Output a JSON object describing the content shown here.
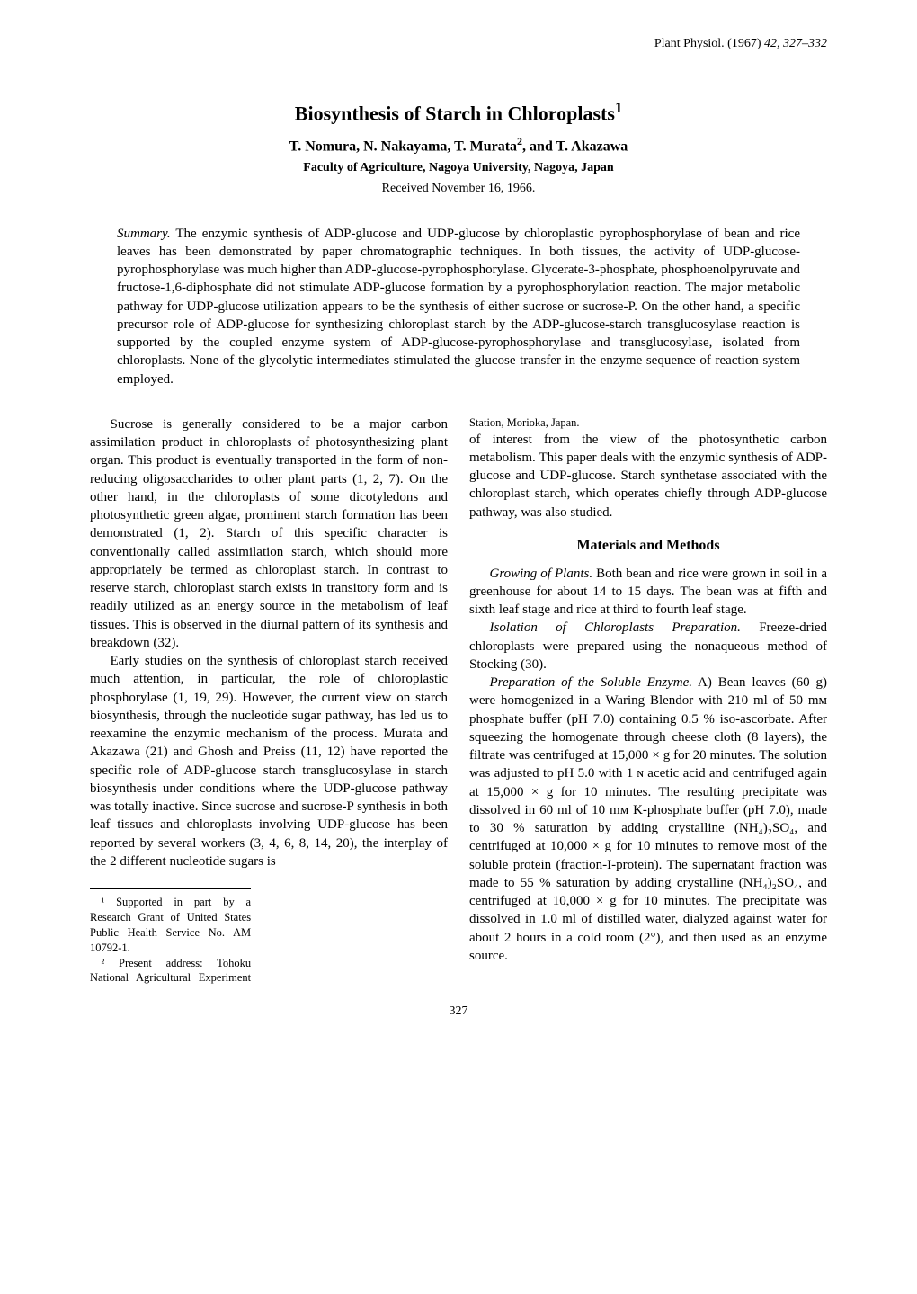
{
  "journal": {
    "name": "Plant Physiol.",
    "year": "(1967)",
    "volume_pages": "42, 327–332"
  },
  "title_text": "Biosynthesis of Starch in Chloroplasts",
  "title_sup": "1",
  "authors_text": "T. Nomura, N. Nakayama, T. Murata",
  "authors_sup": "2",
  "authors_and": ", and T. Akazawa",
  "affiliation": "Faculty of Agriculture, Nagoya University, Nagoya, Japan",
  "received": "Received November 16, 1966.",
  "summary_label": "Summary.",
  "summary_body": "  The enzymic synthesis of ADP-glucose and UDP-glucose by chloroplastic pyrophosphorylase of bean and rice leaves has been demonstrated by paper chromatographic techniques. In both tissues, the activity of UDP-glucose-pyrophosphorylase was much higher than ADP-glucose-pyrophosphorylase. Glycerate-3-phosphate, phosphoenolpyruvate and fructose-1,6-diphosphate did not stimulate ADP-glucose formation by a pyrophosphorylation reaction. The major metabolic pathway for UDP-glucose utilization appears to be the synthesis of either sucrose or sucrose-P. On the other hand, a specific precursor role of ADP-glucose for synthesizing chloroplast starch by the ADP-glucose-starch transglucosylase reaction is supported by the coupled enzyme system of ADP-glucose-pyrophosphorylase and transglucosylase, isolated from chloroplasts. None of the glycolytic intermediates stimulated the glucose transfer in the enzyme sequence of reaction system employed.",
  "body": {
    "p1": "Sucrose is generally considered to be a major carbon assimilation product in chloroplasts of photosynthesizing plant organ. This product is eventually transported in the form of non-reducing oligosaccharides to other plant parts (1, 2, 7). On the other hand, in the chloroplasts of some dicotyledons and photosynthetic green algae, prominent starch formation has been demonstrated (1, 2). Starch of this specific character is conventionally called assimilation starch, which should more appropriately be termed as chloroplast starch. In contrast to reserve starch, chloroplast starch exists in transitory form and is readily utilized as an energy source in the metabolism of leaf tissues. This is observed in the diurnal pattern of its synthesis and breakdown (32).",
    "p2": "Early studies on the synthesis of chloroplast starch received much attention, in particular, the role of chloroplastic phosphorylase (1, 19, 29). However, the current view on starch biosynthesis, through the nucleotide sugar pathway, has led us to reexamine the enzymic mechanism of the process. Murata and Akazawa (21) and Ghosh and Preiss (11, 12) have reported the specific role of ADP-glucose starch transglucosylase in starch biosynthesis under conditions where the UDP-glucose pathway was totally inactive. Since sucrose and sucrose-P synthesis in both leaf tissues and chloroplasts involving UDP-glucose has been reported by several workers (3, 4, 6, 8, 14, 20), the interplay of the 2 different nucleotide sugars is",
    "p3": "of interest from the view of the photosynthetic carbon metabolism. This paper deals with the enzymic synthesis of ADP-glucose and UDP-glucose. Starch synthetase associated with the chloroplast starch, which operates chiefly through ADP-glucose pathway, was also studied.",
    "section_heading": "Materials and Methods",
    "p4_head": "Growing of Plants.",
    "p4": "  Both bean and rice were grown in soil in a greenhouse for about 14 to 15 days. The bean was at fifth and sixth leaf stage and rice at third to fourth leaf stage.",
    "p5_head": "Isolation of Chloroplasts Preparation.",
    "p5": "  Freeze-dried chloroplasts were prepared using the nonaqueous method of Stocking (30).",
    "p6_head": "Preparation of the Soluble Enzyme.",
    "p6": "  A) Bean leaves (60 g) were homogenized in a Waring Blendor with 210 ml of 50 mᴍ phosphate buffer (pH 7.0) containing 0.5 % iso-ascorbate. After squeezing the homogenate through cheese cloth (8 layers), the filtrate was centrifuged at 15,000 × g for 20 minutes. The solution was adjusted to pH 5.0 with 1 ɴ acetic acid and centrifuged again at 15,000 × g for 10 minutes. The resulting precipitate was dissolved in 60 ml of 10 mᴍ K-phosphate buffer (pH 7.0), made to 30 % saturation by adding crystalline (NH₄)₂SO₄, and centrifuged at 10,000 × g for 10 minutes to remove most of the soluble protein (fraction-I-protein). The supernatant fraction was made to 55 % saturation by adding crystalline (NH₄)₂SO₄, and centrifuged at 10,000 × g for 10 minutes. The precipitate was dissolved in 1.0 ml of distilled water, dialyzed against water for about 2 hours in a cold room (2°), and then used as an enzyme source."
  },
  "footnotes": {
    "f1": "¹ Supported in part by a Research Grant of United States Public Health Service No. AM 10792-1.",
    "f2": "² Present address: Tohoku National Agricultural Experiment Station, Morioka, Japan."
  },
  "page_number": "327"
}
